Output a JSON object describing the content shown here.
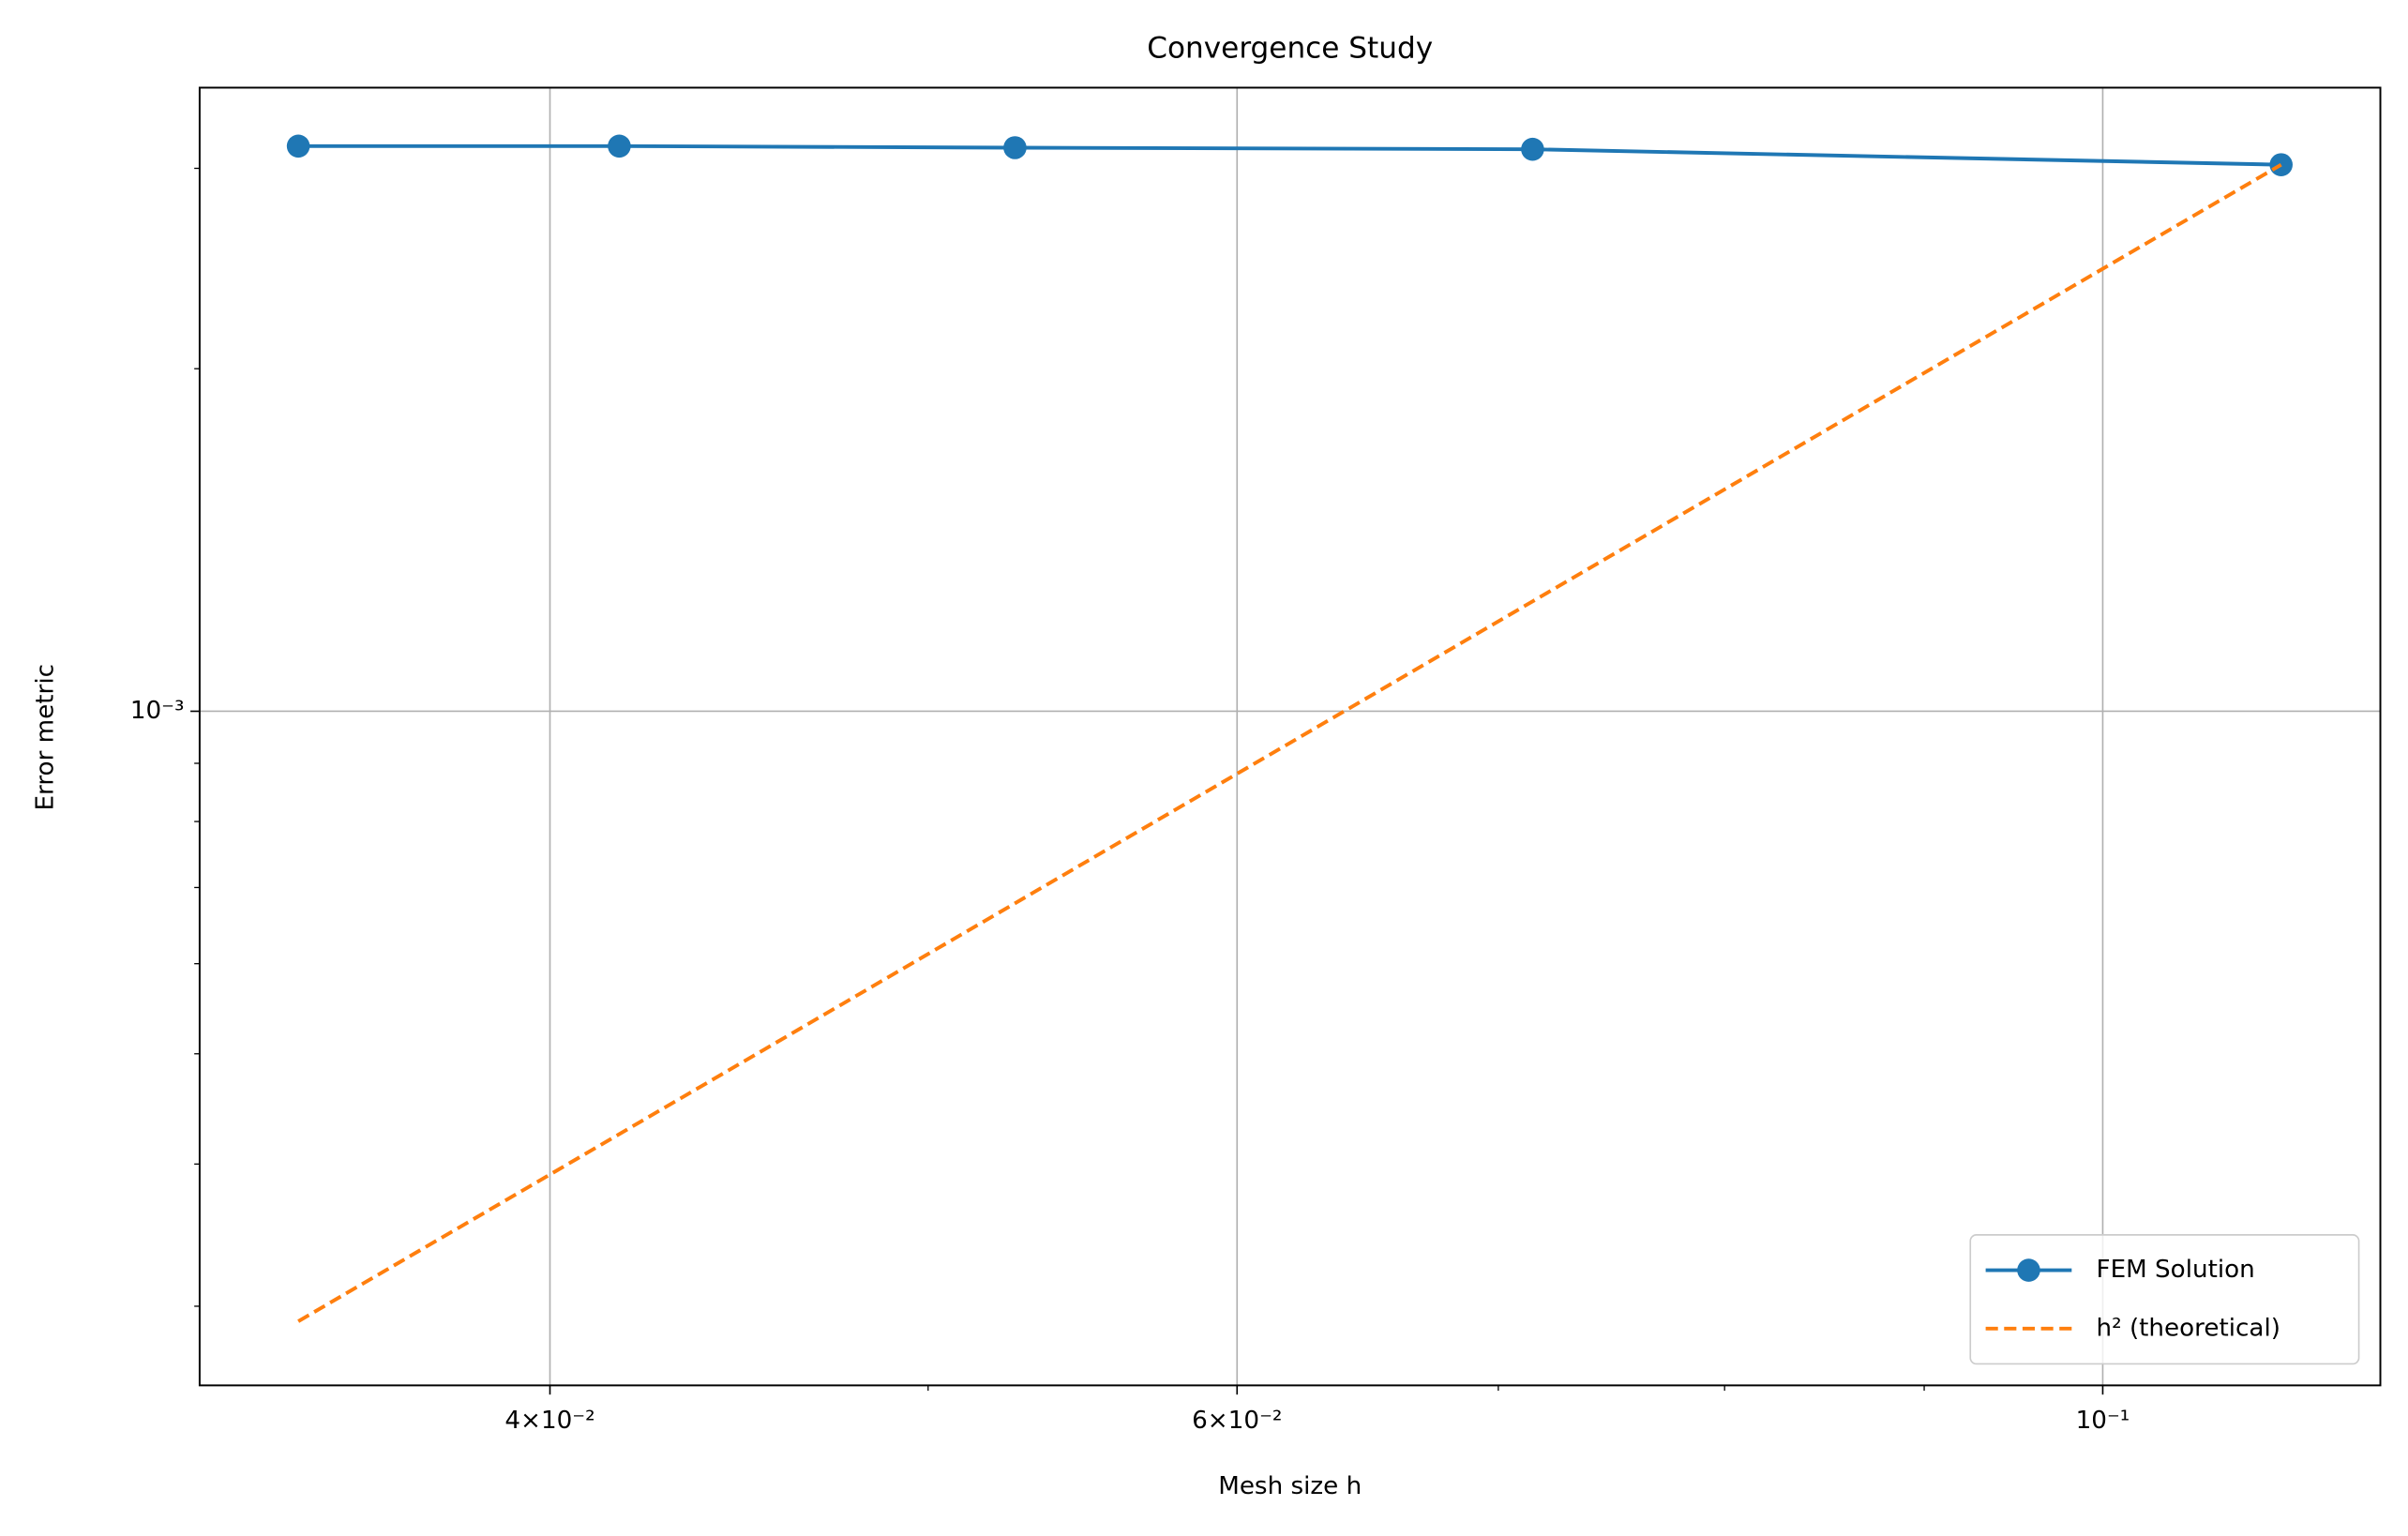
{
  "chart_data": {
    "type": "line",
    "title": "Convergence Study",
    "x_label": "Mesh size h",
    "y_label": "Error metric",
    "x": [
      0.03448,
      0.04167,
      0.05263,
      0.07143,
      0.1111
    ],
    "series": [
      {
        "name": "FEM Solution",
        "color": "#1f77b4",
        "style": "solid",
        "marker": true,
        "values": [
          0.003138,
          0.003138,
          0.003128,
          0.003118,
          0.003022
        ]
      },
      {
        "name": "h² (theoretical)",
        "color": "#ff7f0e",
        "style": "dashed",
        "marker": false,
        "values": [
          0.000291,
          0.000425,
          0.000678,
          0.001249,
          0.003022
        ]
      }
    ],
    "xscale": "log",
    "yscale": "log",
    "xlim": [
      0.03253,
      0.1178
    ],
    "ylim": [
      0.0002556,
      0.003532
    ],
    "xticks": [
      {
        "value": 0.04,
        "label": "4×10⁻²"
      },
      {
        "value": 0.06,
        "label": "6×10⁻²"
      },
      {
        "value": 0.1,
        "label": "10⁻¹"
      }
    ],
    "xminorticks": [
      0.05,
      0.07,
      0.08,
      0.09
    ],
    "yticks": [
      {
        "value": 0.001,
        "label": "10⁻³"
      }
    ],
    "yminorticks": [
      0.0003,
      0.0004,
      0.0005,
      0.0006,
      0.0007,
      0.0008,
      0.0009,
      0.002,
      0.003
    ],
    "grid": true,
    "legend": "lower right"
  }
}
